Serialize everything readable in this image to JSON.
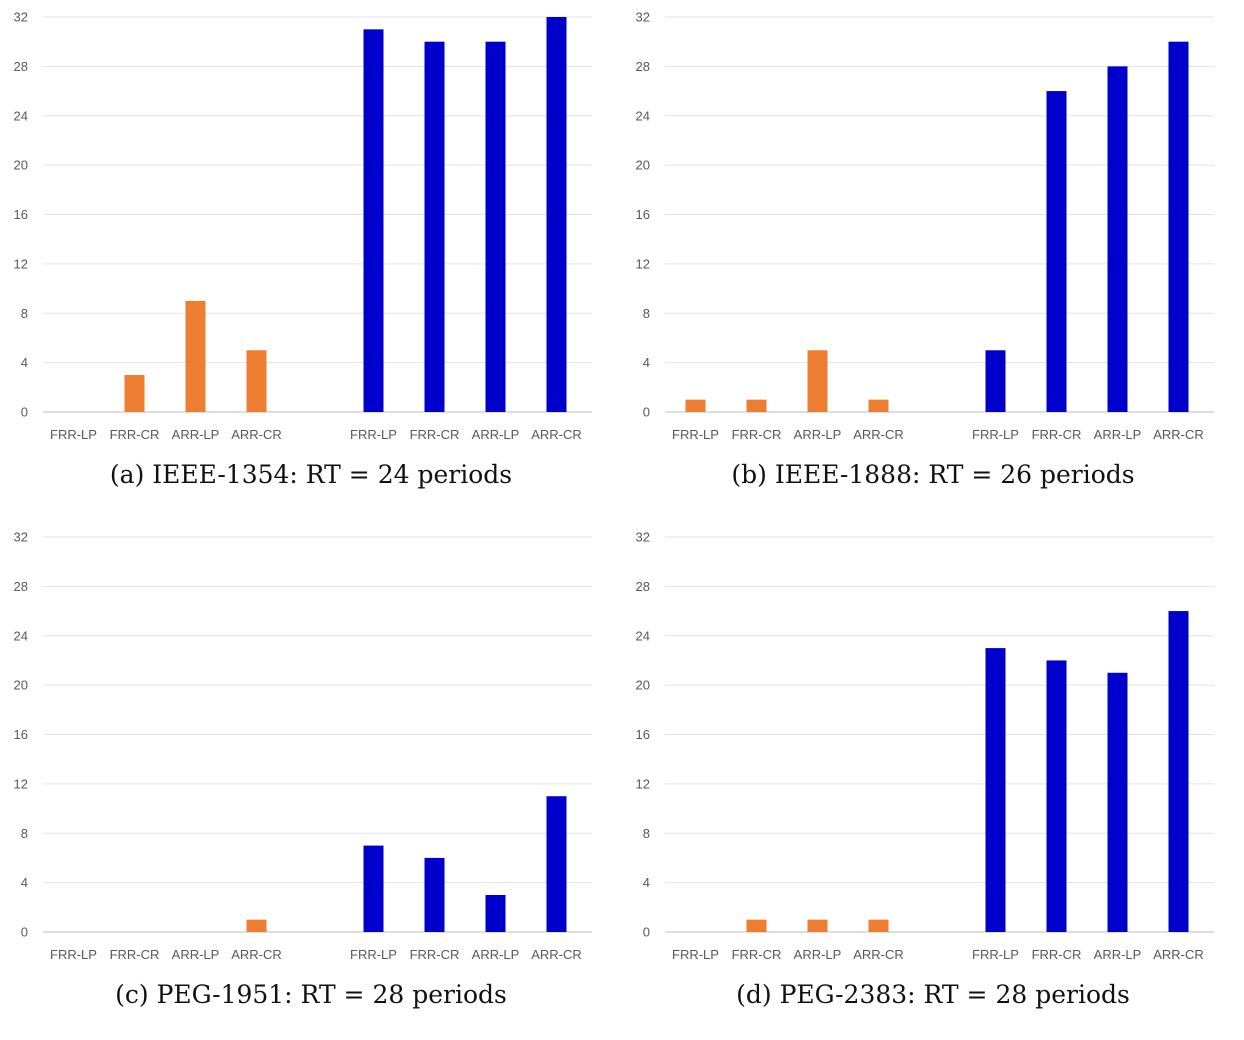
{
  "chart_data": [
    {
      "type": "bar",
      "title": "",
      "caption": "(a) IEEE-1354: RT = 24 periods",
      "ylim": [
        0,
        32
      ],
      "yticks": [
        0,
        4,
        8,
        12,
        16,
        20,
        24,
        28,
        32
      ],
      "grid": true,
      "series": [
        {
          "categories": [
            "FRR-LP",
            "FRR-CR",
            "ARR-LP",
            "ARR-CR"
          ],
          "values": [
            0,
            3,
            9,
            5
          ],
          "color": "#ED7D31"
        },
        {
          "categories": [
            "FRR-LP",
            "FRR-CR",
            "ARR-LP",
            "ARR-CR"
          ],
          "values": [
            31,
            30,
            30,
            32
          ],
          "color": "#0000CC"
        }
      ]
    },
    {
      "type": "bar",
      "title": "",
      "caption": "(b) IEEE-1888: RT = 26 periods",
      "ylim": [
        0,
        32
      ],
      "yticks": [
        0,
        4,
        8,
        12,
        16,
        20,
        24,
        28,
        32
      ],
      "grid": true,
      "series": [
        {
          "categories": [
            "FRR-LP",
            "FRR-CR",
            "ARR-LP",
            "ARR-CR"
          ],
          "values": [
            1,
            1,
            5,
            1
          ],
          "color": "#ED7D31"
        },
        {
          "categories": [
            "FRR-LP",
            "FRR-CR",
            "ARR-LP",
            "ARR-CR"
          ],
          "values": [
            5,
            26,
            28,
            30
          ],
          "color": "#0000CC"
        }
      ]
    },
    {
      "type": "bar",
      "title": "",
      "caption": "(c) PEG-1951: RT = 28 periods",
      "ylim": [
        0,
        32
      ],
      "yticks": [
        0,
        4,
        8,
        12,
        16,
        20,
        24,
        28,
        32
      ],
      "grid": true,
      "series": [
        {
          "categories": [
            "FRR-LP",
            "FRR-CR",
            "ARR-LP",
            "ARR-CR"
          ],
          "values": [
            0,
            0,
            0,
            1
          ],
          "color": "#ED7D31"
        },
        {
          "categories": [
            "FRR-LP",
            "FRR-CR",
            "ARR-LP",
            "ARR-CR"
          ],
          "values": [
            7,
            6,
            3,
            11
          ],
          "color": "#0000CC"
        }
      ]
    },
    {
      "type": "bar",
      "title": "",
      "caption": "(d) PEG-2383: RT = 28 periods",
      "ylim": [
        0,
        32
      ],
      "yticks": [
        0,
        4,
        8,
        12,
        16,
        20,
        24,
        28,
        32
      ],
      "grid": true,
      "series": [
        {
          "categories": [
            "FRR-LP",
            "FRR-CR",
            "ARR-LP",
            "ARR-CR"
          ],
          "values": [
            0,
            1,
            1,
            1
          ],
          "color": "#ED7D31"
        },
        {
          "categories": [
            "FRR-LP",
            "FRR-CR",
            "ARR-LP",
            "ARR-CR"
          ],
          "values": [
            23,
            22,
            21,
            26
          ],
          "color": "#0000CC"
        }
      ]
    }
  ]
}
